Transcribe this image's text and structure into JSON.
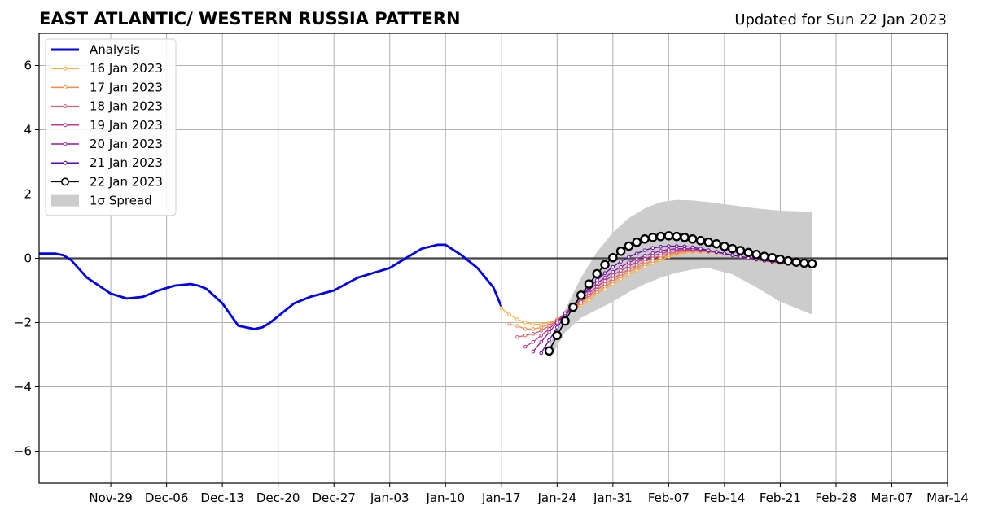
{
  "chart_data": {
    "type": "line",
    "title": "EAST ATLANTIC/ WESTERN RUSSIA PATTERN",
    "subtitle": "Updated for Sun 22 Jan 2023",
    "xlabel": "",
    "ylabel": "",
    "ylim": [
      -7,
      7
    ],
    "xlim": [
      "2022-11-20",
      "2023-03-14"
    ],
    "grid": true,
    "legend_position": "top-left",
    "x_ticks": [
      "Nov-29",
      "Dec-06",
      "Dec-13",
      "Dec-20",
      "Dec-27",
      "Jan-03",
      "Jan-10",
      "Jan-17",
      "Jan-24",
      "Jan-31",
      "Feb-07",
      "Feb-14",
      "Feb-21",
      "Feb-28",
      "Mar-07",
      "Mar-14"
    ],
    "y_ticks": [
      "6",
      "4",
      "2",
      "0",
      "−2",
      "−4",
      "−6"
    ],
    "analysis": {
      "name": "Analysis",
      "color": "#0000ee",
      "x": [
        "2022-11-20",
        "2022-11-22",
        "2022-11-23",
        "2022-11-24",
        "2022-11-26",
        "2022-11-29",
        "2022-12-01",
        "2022-12-03",
        "2022-12-05",
        "2022-12-07",
        "2022-12-09",
        "2022-12-10",
        "2022-12-11",
        "2022-12-13",
        "2022-12-15",
        "2022-12-17",
        "2022-12-18",
        "2022-12-19",
        "2022-12-20",
        "2022-12-22",
        "2022-12-24",
        "2022-12-27",
        "2022-12-30",
        "2023-01-01",
        "2023-01-03",
        "2023-01-05",
        "2023-01-07",
        "2023-01-09",
        "2023-01-10",
        "2023-01-12",
        "2023-01-14",
        "2023-01-16",
        "2023-01-17"
      ],
      "y": [
        0.15,
        0.15,
        0.1,
        -0.05,
        -0.6,
        -1.1,
        -1.25,
        -1.2,
        -1.0,
        -0.85,
        -0.8,
        -0.85,
        -0.95,
        -1.4,
        -2.1,
        -2.2,
        -2.15,
        -2.0,
        -1.8,
        -1.4,
        -1.2,
        -1.0,
        -0.6,
        -0.45,
        -0.3,
        0.0,
        0.3,
        0.42,
        0.42,
        0.1,
        -0.3,
        -0.9,
        -1.5
      ]
    },
    "series": [
      {
        "name": "16 Jan 2023",
        "color": "#fbb040",
        "x": [
          "2023-01-17",
          "2023-01-18",
          "2023-01-19",
          "2023-01-20",
          "2023-01-21",
          "2023-01-22",
          "2023-01-23",
          "2023-01-24",
          "2023-01-25",
          "2023-01-26",
          "2023-01-27",
          "2023-01-28",
          "2023-01-29",
          "2023-01-30",
          "2023-01-31",
          "2023-02-01",
          "2023-02-02",
          "2023-02-03",
          "2023-02-04",
          "2023-02-05",
          "2023-02-06",
          "2023-02-07",
          "2023-02-08",
          "2023-02-09",
          "2023-02-10",
          "2023-02-11",
          "2023-02-12",
          "2023-02-13",
          "2023-02-14",
          "2023-02-15",
          "2023-02-16",
          "2023-02-17",
          "2023-02-18",
          "2023-02-19",
          "2023-02-20",
          "2023-02-21",
          "2023-02-22",
          "2023-02-23"
        ],
        "y": [
          -1.55,
          -1.75,
          -1.9,
          -2.0,
          -2.05,
          -2.05,
          -2.0,
          -1.9,
          -1.75,
          -1.6,
          -1.45,
          -1.3,
          -1.1,
          -0.95,
          -0.8,
          -0.65,
          -0.5,
          -0.38,
          -0.25,
          -0.15,
          -0.05,
          0.05,
          0.12,
          0.18,
          0.2,
          0.2,
          0.2,
          0.18,
          0.15,
          0.1,
          0.05,
          0.0,
          -0.05,
          -0.08,
          -0.12,
          -0.15,
          -0.18,
          -0.2
        ]
      },
      {
        "name": "17 Jan 2023",
        "color": "#f48c45",
        "x": [
          "2023-01-18",
          "2023-01-19",
          "2023-01-20",
          "2023-01-21",
          "2023-01-22",
          "2023-01-23",
          "2023-01-24",
          "2023-01-25",
          "2023-01-26",
          "2023-01-27",
          "2023-01-28",
          "2023-01-29",
          "2023-01-30",
          "2023-01-31",
          "2023-02-01",
          "2023-02-02",
          "2023-02-03",
          "2023-02-04",
          "2023-02-05",
          "2023-02-06",
          "2023-02-07",
          "2023-02-08",
          "2023-02-09",
          "2023-02-10",
          "2023-02-11",
          "2023-02-12",
          "2023-02-13",
          "2023-02-14",
          "2023-02-15",
          "2023-02-16",
          "2023-02-17",
          "2023-02-18",
          "2023-02-19",
          "2023-02-20",
          "2023-02-21",
          "2023-02-22",
          "2023-02-23"
        ],
        "y": [
          -2.05,
          -2.1,
          -2.2,
          -2.2,
          -2.15,
          -2.05,
          -1.9,
          -1.75,
          -1.55,
          -1.4,
          -1.2,
          -1.05,
          -0.88,
          -0.72,
          -0.56,
          -0.42,
          -0.3,
          -0.18,
          -0.08,
          0.02,
          0.1,
          0.16,
          0.2,
          0.22,
          0.22,
          0.2,
          0.18,
          0.14,
          0.1,
          0.05,
          0.0,
          -0.05,
          -0.08,
          -0.12,
          -0.15,
          -0.18,
          -0.2
        ]
      },
      {
        "name": "18 Jan 2023",
        "color": "#e05c6b",
        "x": [
          "2023-01-19",
          "2023-01-20",
          "2023-01-21",
          "2023-01-22",
          "2023-01-23",
          "2023-01-24",
          "2023-01-25",
          "2023-01-26",
          "2023-01-27",
          "2023-01-28",
          "2023-01-29",
          "2023-01-30",
          "2023-01-31",
          "2023-02-01",
          "2023-02-02",
          "2023-02-03",
          "2023-02-04",
          "2023-02-05",
          "2023-02-06",
          "2023-02-07",
          "2023-02-08",
          "2023-02-09",
          "2023-02-10",
          "2023-02-11",
          "2023-02-12",
          "2023-02-13",
          "2023-02-14",
          "2023-02-15",
          "2023-02-16",
          "2023-02-17",
          "2023-02-18",
          "2023-02-19",
          "2023-02-20",
          "2023-02-21",
          "2023-02-22",
          "2023-02-23"
        ],
        "y": [
          -2.45,
          -2.4,
          -2.35,
          -2.25,
          -2.1,
          -1.95,
          -1.75,
          -1.55,
          -1.35,
          -1.15,
          -0.98,
          -0.8,
          -0.64,
          -0.48,
          -0.35,
          -0.22,
          -0.1,
          0.0,
          0.08,
          0.15,
          0.2,
          0.24,
          0.25,
          0.24,
          0.22,
          0.19,
          0.15,
          0.1,
          0.06,
          0.02,
          -0.03,
          -0.07,
          -0.1,
          -0.13,
          -0.16,
          -0.18
        ]
      },
      {
        "name": "19 Jan 2023",
        "color": "#c03c8c",
        "x": [
          "2023-01-20",
          "2023-01-21",
          "2023-01-22",
          "2023-01-23",
          "2023-01-24",
          "2023-01-25",
          "2023-01-26",
          "2023-01-27",
          "2023-01-28",
          "2023-01-29",
          "2023-01-30",
          "2023-01-31",
          "2023-02-01",
          "2023-02-02",
          "2023-02-03",
          "2023-02-04",
          "2023-02-05",
          "2023-02-06",
          "2023-02-07",
          "2023-02-08",
          "2023-02-09",
          "2023-02-10",
          "2023-02-11",
          "2023-02-12",
          "2023-02-13",
          "2023-02-14",
          "2023-02-15",
          "2023-02-16",
          "2023-02-17",
          "2023-02-18",
          "2023-02-19",
          "2023-02-20",
          "2023-02-21",
          "2023-02-22",
          "2023-02-23"
        ],
        "y": [
          -2.75,
          -2.6,
          -2.4,
          -2.2,
          -1.95,
          -1.7,
          -1.5,
          -1.28,
          -1.08,
          -0.88,
          -0.7,
          -0.53,
          -0.38,
          -0.24,
          -0.12,
          -0.02,
          0.08,
          0.15,
          0.21,
          0.25,
          0.27,
          0.27,
          0.26,
          0.23,
          0.19,
          0.15,
          0.1,
          0.06,
          0.01,
          -0.03,
          -0.07,
          -0.1,
          -0.13,
          -0.16,
          -0.18
        ]
      },
      {
        "name": "20 Jan 2023",
        "color": "#9a1aa0",
        "x": [
          "2023-01-21",
          "2023-01-22",
          "2023-01-23",
          "2023-01-24",
          "2023-01-25",
          "2023-01-26",
          "2023-01-27",
          "2023-01-28",
          "2023-01-29",
          "2023-01-30",
          "2023-01-31",
          "2023-02-01",
          "2023-02-02",
          "2023-02-03",
          "2023-02-04",
          "2023-02-05",
          "2023-02-06",
          "2023-02-07",
          "2023-02-08",
          "2023-02-09",
          "2023-02-10",
          "2023-02-11",
          "2023-02-12",
          "2023-02-13",
          "2023-02-14",
          "2023-02-15",
          "2023-02-16",
          "2023-02-17",
          "2023-02-18",
          "2023-02-19",
          "2023-02-20",
          "2023-02-21",
          "2023-02-22",
          "2023-02-23"
        ],
        "y": [
          -2.9,
          -2.6,
          -2.3,
          -2.0,
          -1.72,
          -1.45,
          -1.2,
          -0.98,
          -0.78,
          -0.6,
          -0.42,
          -0.27,
          -0.13,
          -0.02,
          0.08,
          0.16,
          0.23,
          0.27,
          0.3,
          0.3,
          0.29,
          0.27,
          0.24,
          0.2,
          0.15,
          0.1,
          0.06,
          0.01,
          -0.03,
          -0.07,
          -0.1,
          -0.13,
          -0.16,
          -0.18
        ]
      },
      {
        "name": "21 Jan 2023",
        "color": "#5b0aa8",
        "x": [
          "2023-01-22",
          "2023-01-23",
          "2023-01-24",
          "2023-01-25",
          "2023-01-26",
          "2023-01-27",
          "2023-01-28",
          "2023-01-29",
          "2023-01-30",
          "2023-01-31",
          "2023-02-01",
          "2023-02-02",
          "2023-02-03",
          "2023-02-04",
          "2023-02-05",
          "2023-02-06",
          "2023-02-07",
          "2023-02-08",
          "2023-02-09",
          "2023-02-10",
          "2023-02-11",
          "2023-02-12",
          "2023-02-13",
          "2023-02-14",
          "2023-02-15",
          "2023-02-16",
          "2023-02-17",
          "2023-02-18",
          "2023-02-19",
          "2023-02-20",
          "2023-02-21",
          "2023-02-22",
          "2023-02-23"
        ],
        "y": [
          -2.95,
          -2.55,
          -2.15,
          -1.8,
          -1.48,
          -1.18,
          -0.92,
          -0.68,
          -0.46,
          -0.27,
          -0.1,
          0.04,
          0.15,
          0.25,
          0.32,
          0.36,
          0.38,
          0.38,
          0.37,
          0.34,
          0.3,
          0.25,
          0.2,
          0.15,
          0.1,
          0.05,
          0.01,
          -0.03,
          -0.07,
          -0.1,
          -0.13,
          -0.16,
          -0.18
        ]
      },
      {
        "name": "22 Jan 2023",
        "color": "#000000",
        "markers": "large-open",
        "x": [
          "2023-01-23",
          "2023-01-24",
          "2023-01-25",
          "2023-01-26",
          "2023-01-27",
          "2023-01-28",
          "2023-01-29",
          "2023-01-30",
          "2023-01-31",
          "2023-02-01",
          "2023-02-02",
          "2023-02-03",
          "2023-02-04",
          "2023-02-05",
          "2023-02-06",
          "2023-02-07",
          "2023-02-08",
          "2023-02-09",
          "2023-02-10",
          "2023-02-11",
          "2023-02-12",
          "2023-02-13",
          "2023-02-14",
          "2023-02-15",
          "2023-02-16",
          "2023-02-17",
          "2023-02-18",
          "2023-02-19",
          "2023-02-20",
          "2023-02-21",
          "2023-02-22",
          "2023-02-23",
          "2023-02-24",
          "2023-02-25"
        ],
        "y": [
          -2.88,
          -2.4,
          -1.95,
          -1.52,
          -1.15,
          -0.8,
          -0.48,
          -0.2,
          0.02,
          0.22,
          0.38,
          0.5,
          0.6,
          0.65,
          0.68,
          0.7,
          0.68,
          0.65,
          0.6,
          0.55,
          0.5,
          0.45,
          0.37,
          0.3,
          0.24,
          0.18,
          0.12,
          0.06,
          0.02,
          -0.03,
          -0.08,
          -0.12,
          -0.15,
          -0.17
        ]
      }
    ],
    "spread": {
      "name": "1σ Spread",
      "color": "#cccccc",
      "x": [
        "2023-01-23",
        "2023-01-25",
        "2023-01-27",
        "2023-01-29",
        "2023-01-31",
        "2023-02-02",
        "2023-02-04",
        "2023-02-06",
        "2023-02-08",
        "2023-02-10",
        "2023-02-12",
        "2023-02-15",
        "2023-02-18",
        "2023-02-21",
        "2023-02-25"
      ],
      "upper": [
        -2.7,
        -1.6,
        -0.6,
        0.2,
        0.8,
        1.25,
        1.55,
        1.75,
        1.82,
        1.8,
        1.75,
        1.65,
        1.55,
        1.48,
        1.45
      ],
      "lower": [
        -3.15,
        -2.3,
        -1.85,
        -1.6,
        -1.35,
        -1.05,
        -0.8,
        -0.6,
        -0.45,
        -0.35,
        -0.3,
        -0.5,
        -0.9,
        -1.35,
        -1.75
      ]
    }
  },
  "legend": [
    {
      "label": "Analysis",
      "color": "#0000ee",
      "kind": "thick-line"
    },
    {
      "label": "16 Jan 2023",
      "color": "#fbb040",
      "kind": "line-dot"
    },
    {
      "label": "17 Jan 2023",
      "color": "#f48c45",
      "kind": "line-dot"
    },
    {
      "label": "18 Jan 2023",
      "color": "#e05c6b",
      "kind": "line-dot"
    },
    {
      "label": "19 Jan 2023",
      "color": "#c03c8c",
      "kind": "line-dot"
    },
    {
      "label": "20 Jan 2023",
      "color": "#9a1aa0",
      "kind": "line-dot"
    },
    {
      "label": "21 Jan 2023",
      "color": "#5b0aa8",
      "kind": "line-dot"
    },
    {
      "label": "22 Jan 2023",
      "color": "#000000",
      "kind": "line-circle"
    },
    {
      "label": "1σ Spread",
      "color": "#cccccc",
      "kind": "patch"
    }
  ]
}
